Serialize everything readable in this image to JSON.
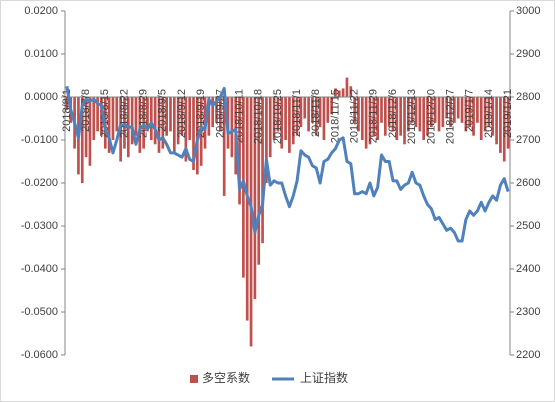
{
  "chart_data": {
    "type": "bar-line",
    "categories": [
      "2018/8/1",
      null,
      null,
      null,
      null,
      "2018/8/8",
      null,
      null,
      null,
      null,
      "2018/8/15",
      null,
      null,
      null,
      null,
      "2018/8/22",
      null,
      null,
      null,
      null,
      "2018/8/29",
      null,
      null,
      null,
      null,
      "2018/9/5",
      null,
      null,
      null,
      null,
      "2018/9/12",
      null,
      null,
      null,
      null,
      "2018/9/19",
      null,
      null,
      null,
      null,
      "2018/9/27",
      null,
      null,
      null,
      null,
      "2018/10/11",
      null,
      null,
      null,
      null,
      "2018/10/18",
      null,
      null,
      null,
      null,
      "2018/10/25",
      null,
      null,
      null,
      null,
      "2018/11/1",
      null,
      null,
      null,
      null,
      "2018/11/8",
      null,
      null,
      null,
      null,
      "2018/11/15",
      null,
      null,
      null,
      null,
      "2018/11/22",
      null,
      null,
      null,
      null,
      "2018/11/29",
      null,
      null,
      null,
      null,
      "2018/12/6",
      null,
      null,
      null,
      null,
      "2018/12/13",
      null,
      null,
      null,
      null,
      "2018/12/20",
      null,
      null,
      null,
      null,
      "2018/12/27",
      null,
      null,
      null,
      null,
      "2019/1/7",
      null,
      null,
      null,
      null,
      "2019/1/14",
      null,
      null,
      null,
      null,
      "2019/1/21"
    ],
    "series": [
      {
        "name": "多空系数",
        "type": "bar",
        "color": "#c0504d",
        "axis": "y",
        "values": [
          -0.003,
          -0.006,
          -0.012,
          -0.018,
          -0.02,
          -0.014,
          -0.016,
          -0.01,
          -0.008,
          -0.009,
          -0.012,
          -0.013,
          -0.01,
          -0.008,
          -0.015,
          -0.012,
          -0.014,
          -0.011,
          -0.009,
          -0.013,
          -0.012,
          -0.008,
          -0.01,
          -0.011,
          -0.013,
          -0.012,
          -0.009,
          -0.008,
          -0.013,
          -0.011,
          -0.009,
          -0.015,
          -0.01,
          -0.017,
          -0.018,
          -0.016,
          -0.012,
          -0.009,
          -0.007,
          -0.006,
          -0.008,
          -0.023,
          -0.012,
          -0.014,
          -0.018,
          -0.025,
          -0.042,
          -0.052,
          -0.058,
          -0.047,
          -0.039,
          -0.034,
          -0.02,
          -0.014,
          -0.01,
          -0.008,
          -0.012,
          -0.01,
          -0.013,
          -0.011,
          -0.009,
          -0.007,
          -0.005,
          -0.008,
          -0.006,
          -0.009,
          -0.007,
          -0.01,
          -0.006,
          -0.004,
          0.002,
          0.0015,
          0.002,
          0.0045,
          0.0025,
          -0.006,
          -0.008,
          -0.01,
          -0.012,
          -0.011,
          -0.009,
          -0.01,
          -0.006,
          -0.009,
          -0.007,
          -0.008,
          -0.01,
          -0.009,
          -0.011,
          -0.008,
          -0.006,
          -0.007,
          -0.008,
          -0.01,
          -0.009,
          -0.007,
          -0.006,
          -0.008,
          -0.007,
          -0.005,
          -0.007,
          -0.006,
          -0.005,
          -0.006,
          -0.008,
          -0.007,
          -0.009,
          -0.006,
          -0.01,
          -0.008,
          -0.007,
          -0.009,
          -0.011,
          -0.013,
          -0.015,
          -0.012
        ]
      },
      {
        "name": "上证指数",
        "type": "line",
        "color": "#4f81bd",
        "axis": "y2",
        "values": [
          2825,
          2770,
          2740,
          2705,
          2780,
          2795,
          2790,
          2795,
          2785,
          2780,
          2725,
          2705,
          2670,
          2700,
          2735,
          2735,
          2730,
          2730,
          2690,
          2725,
          2735,
          2725,
          2740,
          2725,
          2700,
          2705,
          2690,
          2670,
          2670,
          2665,
          2660,
          2680,
          2655,
          2650,
          2700,
          2730,
          2725,
          2795,
          2780,
          2790,
          2800,
          2820,
          2715,
          2720,
          2725,
          2585,
          2605,
          2570,
          2545,
          2485,
          2525,
          2550,
          2655,
          2595,
          2605,
          2600,
          2600,
          2570,
          2545,
          2570,
          2605,
          2675,
          2665,
          2660,
          2640,
          2635,
          2600,
          2650,
          2655,
          2670,
          2680,
          2700,
          2705,
          2650,
          2645,
          2575,
          2575,
          2580,
          2575,
          2600,
          2570,
          2590,
          2665,
          2650,
          2650,
          2605,
          2605,
          2585,
          2595,
          2600,
          2625,
          2600,
          2595,
          2570,
          2550,
          2540,
          2515,
          2520,
          2505,
          2490,
          2495,
          2485,
          2465,
          2465,
          2515,
          2535,
          2525,
          2535,
          2555,
          2535,
          2555,
          2570,
          2560,
          2595,
          2610,
          2580
        ]
      }
    ],
    "ylim": [
      -0.06,
      0.02
    ],
    "yticks": [
      {
        "value": -0.06,
        "label": "-0.0600"
      },
      {
        "value": -0.05,
        "label": "-0.0500"
      },
      {
        "value": -0.04,
        "label": "-0.0400"
      },
      {
        "value": -0.03,
        "label": "-0.0300"
      },
      {
        "value": -0.02,
        "label": "-0.0200"
      },
      {
        "value": -0.01,
        "label": "-0.0100"
      },
      {
        "value": 0,
        "label": "0.0000"
      },
      {
        "value": 0.01,
        "label": "0.0100"
      },
      {
        "value": 0.02,
        "label": "0.0200"
      }
    ],
    "y2lim": [
      2200,
      3000
    ],
    "y2ticks": [
      2200,
      2300,
      2400,
      2500,
      2600,
      2700,
      2800,
      2900,
      3000
    ],
    "legend": "bottom"
  }
}
